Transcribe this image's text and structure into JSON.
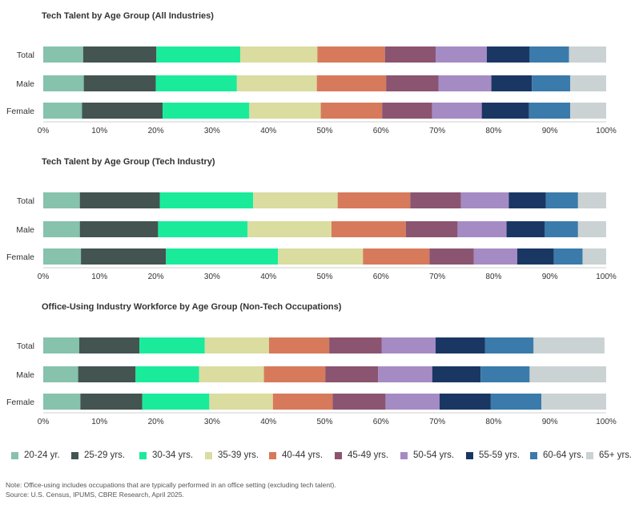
{
  "categories": [
    "Total",
    "Male",
    "Female"
  ],
  "chart_data": [
    {
      "type": "bar",
      "orientation": "horizontal",
      "stacked": true,
      "title": "Tech Talent by Age Group (All Industries)",
      "categories": [
        "Total",
        "Male",
        "Female"
      ],
      "xlim": [
        0,
        100
      ],
      "xticks": [
        "0%",
        "10%",
        "20%",
        "30%",
        "40%",
        "50%",
        "60%",
        "70%",
        "80%",
        "90%",
        "100%"
      ],
      "series": [
        {
          "name": "20-24 yr.",
          "values": [
            7.1,
            7.2,
            6.9
          ]
        },
        {
          "name": "25-29 yrs.",
          "values": [
            13.0,
            12.8,
            14.3
          ]
        },
        {
          "name": "30-34 yrs.",
          "values": [
            14.9,
            14.4,
            15.4
          ]
        },
        {
          "name": "35-39 yrs.",
          "values": [
            13.7,
            14.2,
            12.7
          ]
        },
        {
          "name": "40-44 yrs.",
          "values": [
            12.0,
            12.3,
            10.9
          ]
        },
        {
          "name": "45-49 yrs.",
          "values": [
            9.0,
            9.3,
            8.9
          ]
        },
        {
          "name": "50-54 yrs.",
          "values": [
            9.1,
            9.4,
            8.8
          ]
        },
        {
          "name": "55-59 yrs.",
          "values": [
            7.6,
            7.2,
            8.4
          ]
        },
        {
          "name": "60-64 yrs.",
          "values": [
            7.0,
            6.8,
            7.3
          ]
        },
        {
          "name": "65+ yrs.",
          "values": [
            6.6,
            6.4,
            6.4
          ]
        }
      ]
    },
    {
      "type": "bar",
      "orientation": "horizontal",
      "stacked": true,
      "title": "Tech Talent by Age Group (Tech Industry)",
      "categories": [
        "Total",
        "Male",
        "Female"
      ],
      "xlim": [
        0,
        100
      ],
      "xticks": [
        "0%",
        "10%",
        "20%",
        "30%",
        "40%",
        "50%",
        "60%",
        "70%",
        "80%",
        "90%",
        "100%"
      ],
      "series": [
        {
          "name": "20-24 yr.",
          "values": [
            6.5,
            6.5,
            6.7
          ]
        },
        {
          "name": "25-29 yrs.",
          "values": [
            14.2,
            13.9,
            15.1
          ]
        },
        {
          "name": "30-34 yrs.",
          "values": [
            16.6,
            15.9,
            19.9
          ]
        },
        {
          "name": "35-39 yrs.",
          "values": [
            15.0,
            14.9,
            15.1
          ]
        },
        {
          "name": "40-44 yrs.",
          "values": [
            12.9,
            13.2,
            11.8
          ]
        },
        {
          "name": "45-49 yrs.",
          "values": [
            9.0,
            9.2,
            7.9
          ]
        },
        {
          "name": "50-54 yrs.",
          "values": [
            8.5,
            8.7,
            7.7
          ]
        },
        {
          "name": "55-59 yrs.",
          "values": [
            6.6,
            6.8,
            6.5
          ]
        },
        {
          "name": "60-64 yrs.",
          "values": [
            5.7,
            5.9,
            5.1
          ]
        },
        {
          "name": "65+ yrs.",
          "values": [
            5.0,
            5.0,
            4.2
          ]
        }
      ]
    },
    {
      "type": "bar",
      "orientation": "horizontal",
      "stacked": true,
      "title": "Office-Using Industry Workforce by Age Group (Non-Tech Occupations)",
      "categories": [
        "Total",
        "Male",
        "Female"
      ],
      "xlim": [
        0,
        100
      ],
      "xticks": [
        "0%",
        "10%",
        "20%",
        "30%",
        "40%",
        "50%",
        "60%",
        "70%",
        "80%",
        "90%",
        "100%"
      ],
      "series": [
        {
          "name": "20-24 yr.",
          "values": [
            6.4,
            6.2,
            6.6
          ]
        },
        {
          "name": "25-29 yrs.",
          "values": [
            10.7,
            10.2,
            11.0
          ]
        },
        {
          "name": "30-34 yrs.",
          "values": [
            11.6,
            11.3,
            11.9
          ]
        },
        {
          "name": "35-39 yrs.",
          "values": [
            11.4,
            11.5,
            11.3
          ]
        },
        {
          "name": "40-44 yrs.",
          "values": [
            10.7,
            10.9,
            10.6
          ]
        },
        {
          "name": "45-49 yrs.",
          "values": [
            9.3,
            9.4,
            9.4
          ]
        },
        {
          "name": "50-54 yrs.",
          "values": [
            9.6,
            9.6,
            9.6
          ]
        },
        {
          "name": "55-59 yrs.",
          "values": [
            8.8,
            8.6,
            9.1
          ]
        },
        {
          "name": "60-64 yrs.",
          "values": [
            8.6,
            8.7,
            9.0
          ]
        },
        {
          "name": "65+ yrs.",
          "values": [
            12.6,
            13.6,
            11.5
          ]
        }
      ]
    }
  ],
  "colors": [
    "#86c2ac",
    "#435451",
    "#1aeb9b",
    "#dadca0",
    "#d77a5b",
    "#8b5470",
    "#a58bc4",
    "#1a3764",
    "#3a7bab",
    "#cbd2d3"
  ],
  "legend": [
    "20-24 yr.",
    "25-29 yrs.",
    "30-34 yrs.",
    "35-39 yrs.",
    "40-44 yrs.",
    "45-49 yrs.",
    "50-54 yrs.",
    "55-59 yrs.",
    "60-64 yrs.",
    "65+ yrs."
  ],
  "footer": {
    "note": "Note: Office-using includes occupations that are typically performed in an office setting (excluding tech talent).",
    "source": "Source: U.S. Census, IPUMS, CBRE Research, April 2025."
  }
}
